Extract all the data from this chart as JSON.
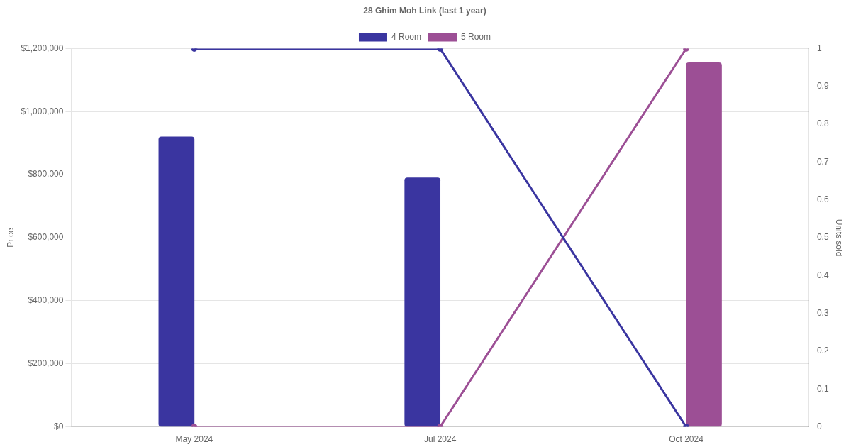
{
  "chart_data": {
    "type": "bar",
    "title": "28 Ghim Moh Link (last 1 year)",
    "categories": [
      "May 2024",
      "Jul 2024",
      "Oct 2024"
    ],
    "ylabel": "Price",
    "y2label": "Units sold",
    "ylim": [
      0,
      1200000
    ],
    "yticks": [
      {
        "value": 0,
        "label": "$0"
      },
      {
        "value": 200000,
        "label": "$200,000"
      },
      {
        "value": 400000,
        "label": "$400,000"
      },
      {
        "value": 600000,
        "label": "$600,000"
      },
      {
        "value": 800000,
        "label": "$800,000"
      },
      {
        "value": 1000000,
        "label": "$1,000,000"
      },
      {
        "value": 1200000,
        "label": "$1,200,000"
      }
    ],
    "y2lim": [
      0,
      1
    ],
    "y2ticks": [
      0,
      0.1,
      0.2,
      0.3,
      0.4,
      0.5,
      0.6,
      0.7,
      0.8,
      0.9,
      1
    ],
    "grid": "y",
    "legend": "top",
    "marker": "circle",
    "line_style": "solid",
    "series": [
      {
        "name": "4 Room",
        "color": "#3a35a0",
        "values": [
          920000,
          790000,
          null
        ]
      },
      {
        "name": "5 Room",
        "color": "#9c4f95",
        "values": [
          null,
          null,
          1155000
        ]
      },
      {
        "color": "#3a35a0",
        "type": "line",
        "axis": "y2",
        "values": [
          1,
          1,
          0
        ]
      },
      {
        "color": "#9c4f95",
        "type": "line",
        "axis": "y2",
        "values": [
          0,
          0,
          1
        ]
      }
    ]
  }
}
